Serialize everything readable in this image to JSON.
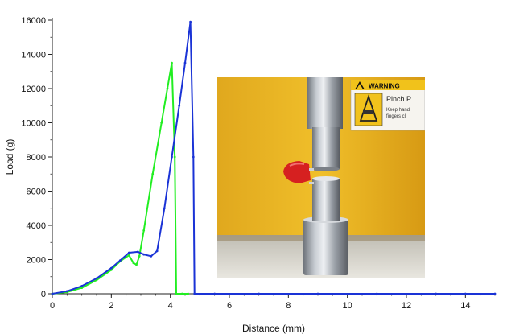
{
  "chart_data": {
    "type": "line",
    "xlabel": "Distance (mm)",
    "ylabel": "Load (g)",
    "xlim": [
      0,
      15
    ],
    "ylim": [
      0,
      16000
    ],
    "x_ticks": [
      "0",
      "2",
      "4",
      "6",
      "8",
      "10",
      "12",
      "14"
    ],
    "y_ticks": [
      "0",
      "2000",
      "4000",
      "6000",
      "8000",
      "10000",
      "12000",
      "14000",
      "16000"
    ],
    "grid": false,
    "series": [
      {
        "color": "#1a33d6",
        "points": [
          [
            0,
            0
          ],
          [
            0.5,
            150
          ],
          [
            1,
            450
          ],
          [
            1.5,
            900
          ],
          [
            2,
            1500
          ],
          [
            2.3,
            1950
          ],
          [
            2.6,
            2400
          ],
          [
            2.9,
            2450
          ],
          [
            3.1,
            2300
          ],
          [
            3.35,
            2200
          ],
          [
            3.55,
            2500
          ],
          [
            3.8,
            5000
          ],
          [
            4.05,
            8000
          ],
          [
            4.3,
            11000
          ],
          [
            4.5,
            13500
          ],
          [
            4.68,
            15900
          ],
          [
            4.78,
            8000
          ],
          [
            4.82,
            0
          ],
          [
            5.5,
            0
          ],
          [
            7,
            0
          ],
          [
            9,
            0
          ],
          [
            11,
            0
          ],
          [
            13,
            0
          ],
          [
            14,
            0
          ],
          [
            15,
            0
          ]
        ]
      },
      {
        "color": "#22ee22",
        "points": [
          [
            0,
            0
          ],
          [
            0.5,
            100
          ],
          [
            1,
            350
          ],
          [
            1.5,
            800
          ],
          [
            2,
            1400
          ],
          [
            2.3,
            1900
          ],
          [
            2.6,
            2250
          ],
          [
            2.75,
            1800
          ],
          [
            2.85,
            1700
          ],
          [
            2.95,
            2200
          ],
          [
            3.1,
            3700
          ],
          [
            3.4,
            7000
          ],
          [
            3.7,
            10000
          ],
          [
            3.9,
            12000
          ],
          [
            4.05,
            13500
          ],
          [
            4.15,
            8000
          ],
          [
            4.2,
            0
          ],
          [
            4.4,
            0
          ],
          [
            4.6,
            0
          ]
        ]
      }
    ],
    "inset_warning": {
      "title": "WARNING",
      "heading": "Pinch P",
      "line1": "Keep hand",
      "line2": "fingers cl"
    }
  }
}
